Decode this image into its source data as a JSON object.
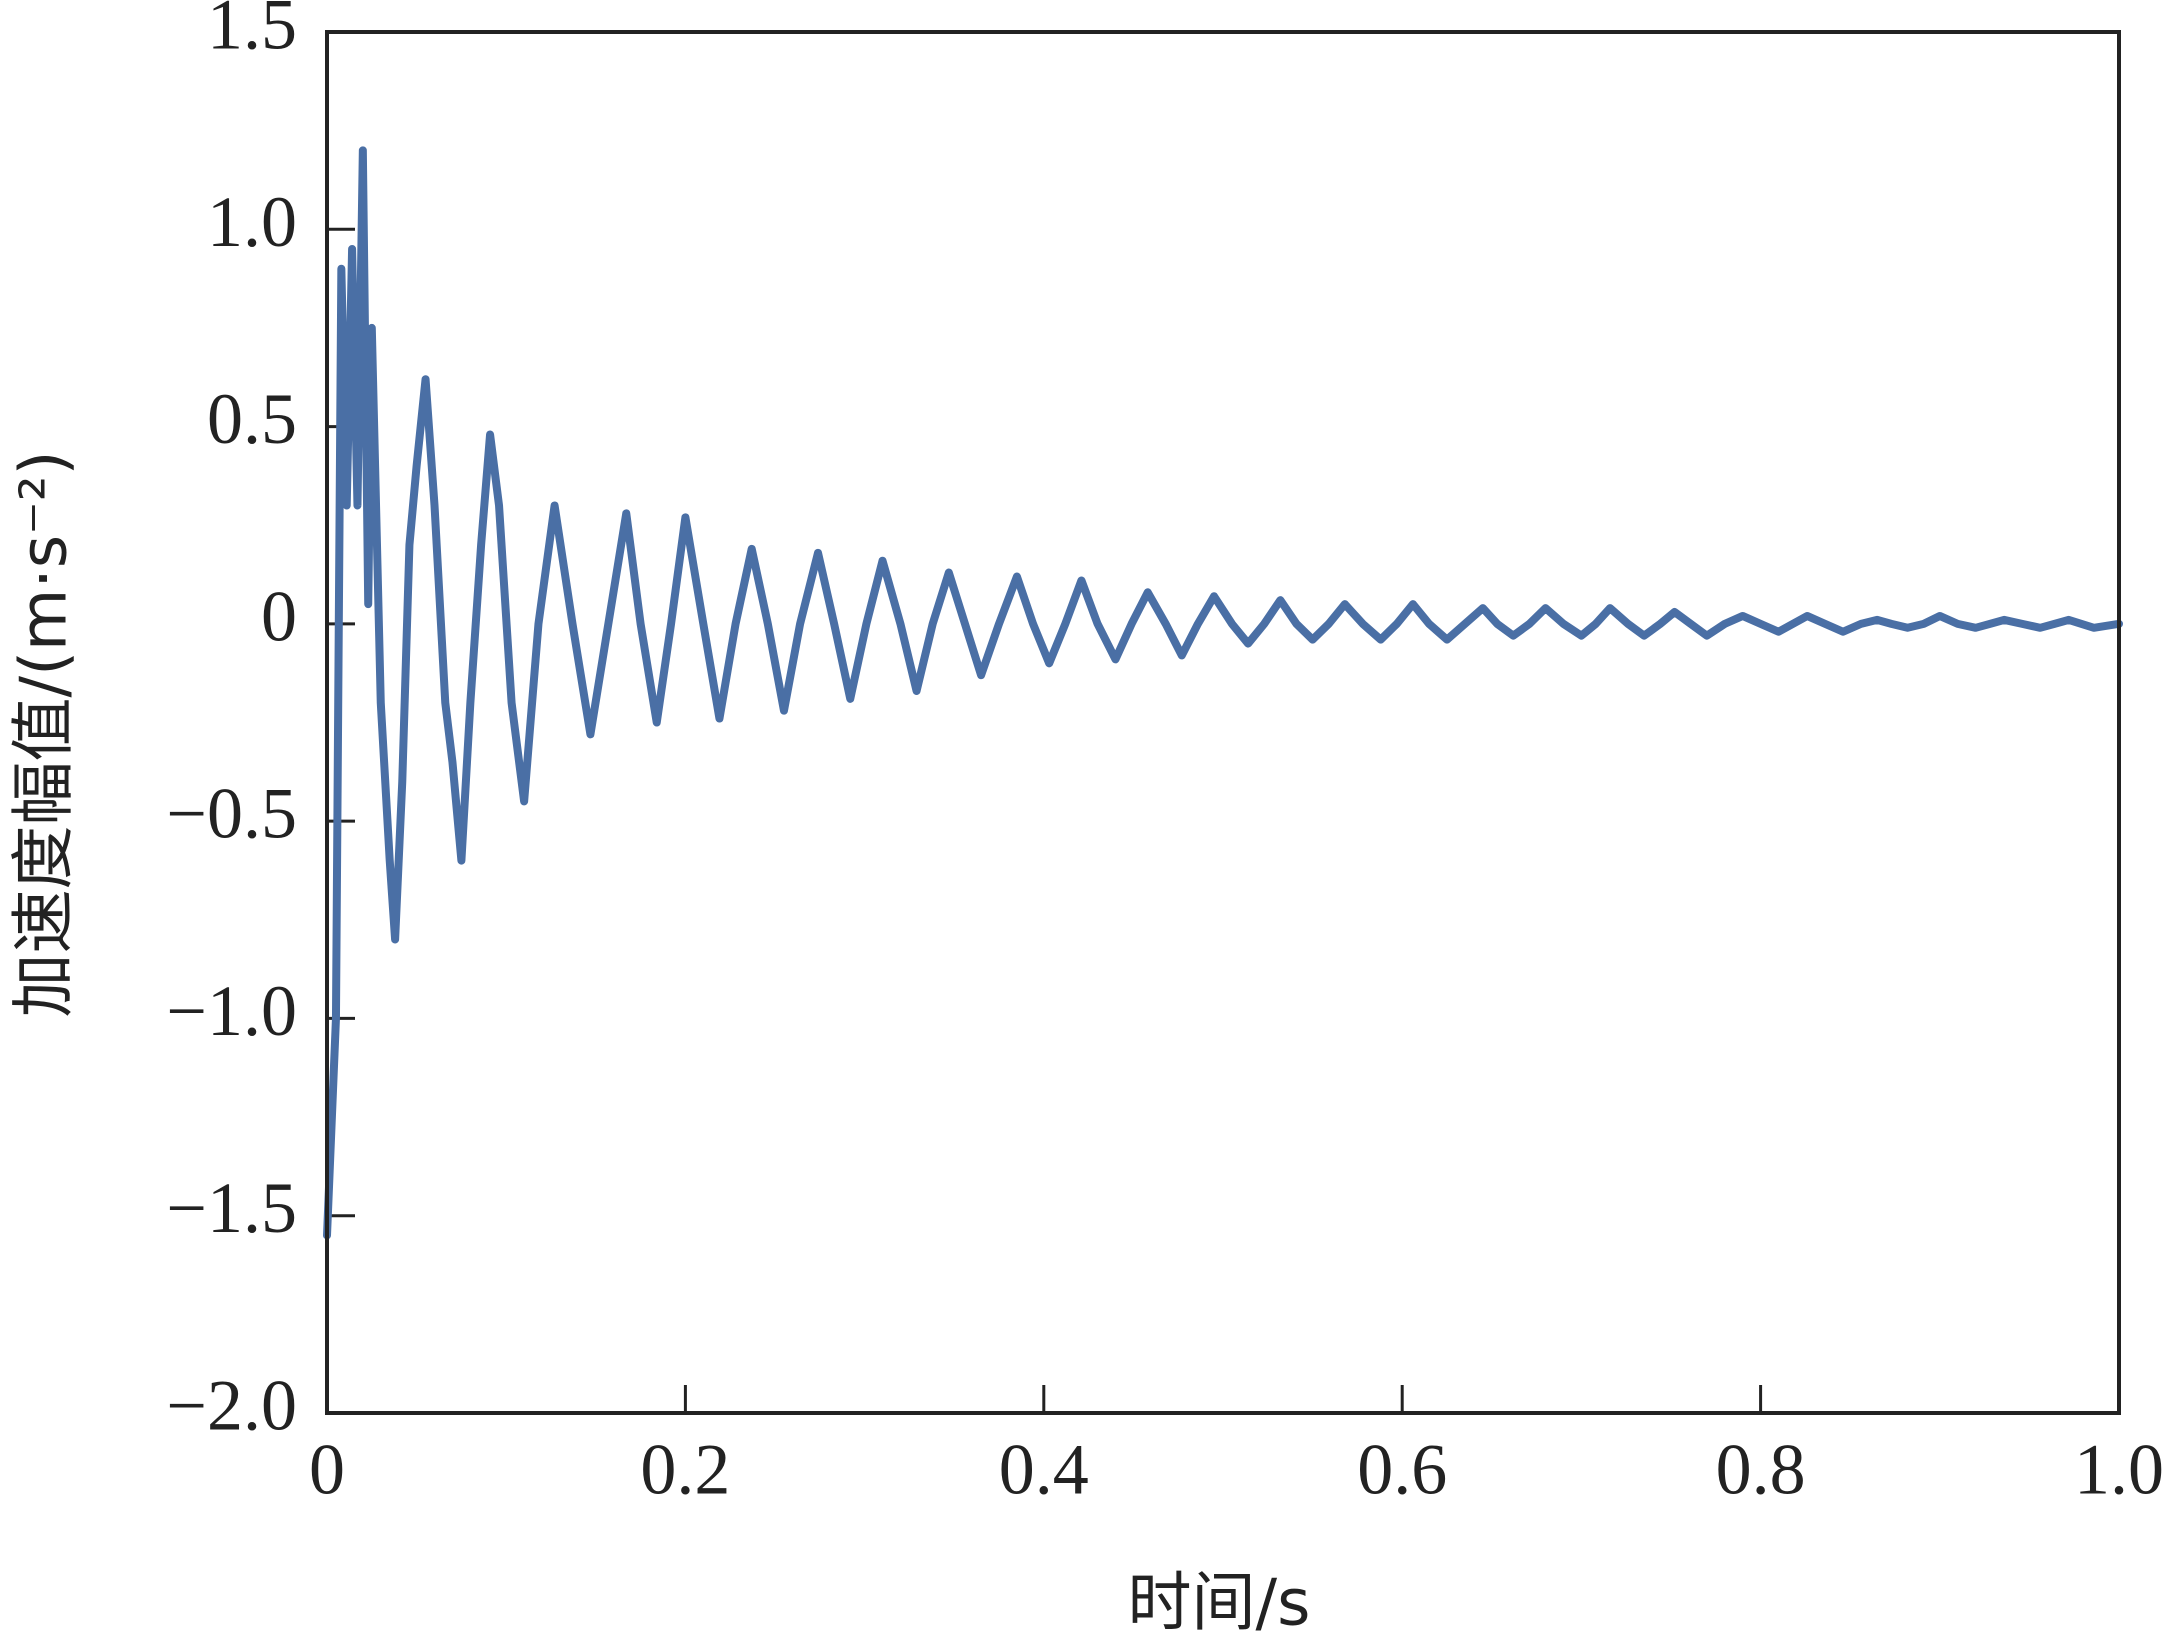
{
  "chart_data": {
    "type": "line",
    "x_label": "时间/s",
    "y_label": "加速度幅值/(m·s⁻²)",
    "xlim": [
      0,
      1
    ],
    "ylim": [
      -2,
      1.5
    ],
    "xticks": [
      0,
      0.2,
      0.4,
      0.6,
      0.8,
      {
        "value": 1,
        "label": "1.0"
      }
    ],
    "yticks": [
      {
        "value": -2,
        "label": "−2.0"
      },
      {
        "value": -1.5,
        "label": "−1.5"
      },
      {
        "value": -1,
        "label": "−1.0"
      },
      {
        "value": -0.5,
        "label": "−0.5"
      },
      0,
      0.5,
      {
        "value": 1,
        "label": "1.0"
      },
      1.5
    ],
    "x": [
      0,
      0.005,
      0.008,
      0.011,
      0.014,
      0.017,
      0.02,
      0.023,
      0.025,
      0.03,
      0.035,
      0.038,
      0.042,
      0.046,
      0.05,
      0.055,
      0.06,
      0.066,
      0.07,
      0.075,
      0.08,
      0.086,
      0.091,
      0.096,
      0.103,
      0.11,
      0.118,
      0.127,
      0.137,
      0.147,
      0.157,
      0.167,
      0.175,
      0.184,
      0.192,
      0.2,
      0.21,
      0.219,
      0.228,
      0.237,
      0.246,
      0.255,
      0.264,
      0.274,
      0.283,
      0.292,
      0.301,
      0.31,
      0.32,
      0.329,
      0.338,
      0.347,
      0.356,
      0.365,
      0.375,
      0.385,
      0.394,
      0.403,
      0.412,
      0.421,
      0.43,
      0.44,
      0.449,
      0.458,
      0.468,
      0.477,
      0.486,
      0.495,
      0.505,
      0.514,
      0.523,
      0.532,
      0.541,
      0.55,
      0.559,
      0.568,
      0.578,
      0.588,
      0.597,
      0.606,
      0.615,
      0.625,
      0.635,
      0.645,
      0.653,
      0.662,
      0.671,
      0.68,
      0.69,
      0.7,
      0.708,
      0.716,
      0.726,
      0.735,
      0.744,
      0.752,
      0.761,
      0.77,
      0.78,
      0.79,
      0.8,
      0.81,
      0.818,
      0.826,
      0.836,
      0.846,
      0.856,
      0.865,
      0.873,
      0.882,
      0.891,
      0.9,
      0.91,
      0.92,
      0.928,
      0.936,
      0.946,
      0.956,
      0.964,
      0.972,
      0.986,
      1.0
    ],
    "series": [
      {
        "color": "#4a6fa5",
        "values": [
          -1.55,
          -1.0,
          0.9,
          0.3,
          0.95,
          0.3,
          1.2,
          0.05,
          0.75,
          -0.2,
          -0.6,
          -0.8,
          -0.4,
          0.2,
          0.4,
          0.62,
          0.3,
          -0.2,
          -0.35,
          -0.6,
          -0.2,
          0.2,
          0.48,
          0.3,
          -0.2,
          -0.45,
          0,
          0.3,
          0,
          -0.28,
          0,
          0.28,
          0,
          -0.25,
          0,
          0.27,
          0,
          -0.24,
          0,
          0.19,
          0,
          -0.22,
          0,
          0.18,
          0,
          -0.19,
          0,
          0.16,
          0,
          -0.17,
          0,
          0.13,
          0,
          -0.13,
          0,
          0.12,
          0,
          -0.1,
          0,
          0.11,
          0,
          -0.09,
          0,
          0.08,
          0,
          -0.08,
          0,
          0.07,
          0,
          -0.05,
          0,
          0.06,
          0,
          -0.04,
          0,
          0.05,
          0,
          -0.04,
          0,
          0.05,
          0,
          -0.04,
          0,
          0.04,
          0,
          -0.03,
          0,
          0.04,
          0,
          -0.03,
          0,
          0.04,
          0,
          -0.03,
          0,
          0.03,
          0,
          -0.03,
          0,
          0.02,
          0,
          -0.02,
          0,
          0.02,
          0,
          -0.02,
          0,
          0.01,
          0,
          -0.01,
          0,
          0.02,
          0,
          -0.01,
          0,
          0.01,
          0,
          -0.01,
          0,
          0.01,
          -0.01,
          0
        ]
      }
    ]
  }
}
